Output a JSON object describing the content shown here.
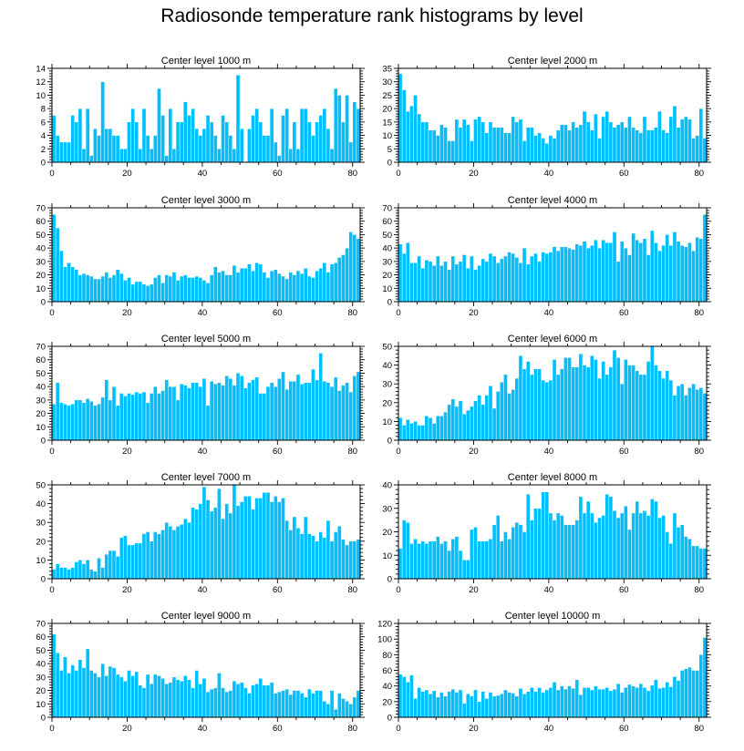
{
  "figure_title": "Radiosonde temperature rank histograms by level",
  "colors": {
    "bar": "#00bfff",
    "axes": "#000000"
  },
  "chart_data": [
    {
      "type": "bar",
      "title": "Center level 1000 m",
      "xlim": [
        0,
        82
      ],
      "ylim": [
        0,
        14
      ],
      "yticks": [
        0,
        2,
        4,
        6,
        8,
        10,
        12,
        14
      ],
      "xticks": [
        0,
        20,
        40,
        60,
        80
      ],
      "values": [
        7,
        4,
        3,
        3,
        3,
        7,
        6,
        8,
        2,
        8,
        1,
        5,
        4,
        12,
        5,
        5,
        4,
        4,
        2,
        2,
        6,
        8,
        6,
        2,
        8,
        4,
        2,
        4,
        11,
        7,
        1,
        8,
        2,
        6,
        6,
        9,
        7,
        8,
        5,
        4,
        5,
        7,
        6,
        4,
        2,
        7,
        6,
        4,
        2,
        13,
        5,
        0,
        5,
        7,
        8,
        6,
        4,
        4,
        8,
        3,
        1,
        7,
        8,
        2,
        6,
        2,
        8,
        8,
        6,
        4,
        6,
        7,
        8,
        5,
        2,
        11,
        10,
        6,
        10,
        3,
        9,
        8
      ]
    },
    {
      "type": "bar",
      "title": "Center level 2000 m",
      "xlim": [
        0,
        82
      ],
      "ylim": [
        0,
        35
      ],
      "yticks": [
        0,
        5,
        10,
        15,
        20,
        25,
        30,
        35
      ],
      "xticks": [
        0,
        20,
        40,
        60,
        80
      ],
      "values": [
        33,
        27,
        19,
        21,
        25,
        18,
        15,
        15,
        12,
        12,
        10,
        14,
        13,
        8,
        8,
        16,
        13,
        16,
        14,
        8,
        16,
        17,
        15,
        11,
        15,
        13,
        13,
        13,
        11,
        11,
        17,
        15,
        16,
        8,
        13,
        13,
        10,
        11,
        9,
        7,
        10,
        9,
        12,
        14,
        14,
        12,
        15,
        13,
        14,
        19,
        15,
        12,
        18,
        9,
        17,
        19,
        15,
        13,
        14,
        15,
        13,
        17,
        13,
        12,
        11,
        17,
        12,
        12,
        13,
        19,
        12,
        11,
        17,
        21,
        13,
        16,
        17,
        16,
        9,
        10,
        20,
        9
      ]
    },
    {
      "type": "bar",
      "title": "Center level 3000 m",
      "xlim": [
        0,
        82
      ],
      "ylim": [
        0,
        70
      ],
      "yticks": [
        0,
        10,
        20,
        30,
        40,
        50,
        60,
        70
      ],
      "xticks": [
        0,
        20,
        40,
        60,
        80
      ],
      "values": [
        65,
        55,
        38,
        26,
        29,
        26,
        24,
        20,
        21,
        20,
        19,
        17,
        17,
        19,
        22,
        18,
        20,
        24,
        21,
        16,
        18,
        13,
        15,
        15,
        13,
        12,
        13,
        18,
        20,
        14,
        20,
        19,
        22,
        16,
        19,
        20,
        18,
        18,
        19,
        18,
        16,
        14,
        20,
        26,
        22,
        23,
        20,
        20,
        27,
        22,
        25,
        25,
        28,
        23,
        29,
        28,
        22,
        18,
        23,
        24,
        21,
        19,
        17,
        22,
        20,
        23,
        21,
        25,
        19,
        18,
        23,
        25,
        29,
        22,
        28,
        29,
        33,
        35,
        40,
        52,
        50,
        47
      ]
    },
    {
      "type": "bar",
      "title": "Center level 4000 m",
      "xlim": [
        0,
        82
      ],
      "ylim": [
        0,
        70
      ],
      "yticks": [
        0,
        10,
        20,
        30,
        40,
        50,
        60,
        70
      ],
      "xticks": [
        0,
        20,
        40,
        60,
        80
      ],
      "values": [
        43,
        36,
        44,
        29,
        29,
        34,
        25,
        31,
        30,
        27,
        34,
        27,
        30,
        24,
        34,
        28,
        30,
        35,
        25,
        34,
        24,
        27,
        32,
        30,
        36,
        34,
        29,
        32,
        34,
        37,
        36,
        33,
        29,
        40,
        28,
        34,
        36,
        30,
        37,
        36,
        37,
        41,
        38,
        41,
        41,
        40,
        39,
        43,
        42,
        45,
        40,
        42,
        46,
        40,
        46,
        44,
        44,
        52,
        30,
        45,
        40,
        35,
        51,
        46,
        44,
        47,
        35,
        53,
        44,
        38,
        42,
        50,
        42,
        52,
        45,
        42,
        41,
        44,
        38,
        48,
        47,
        65
      ]
    },
    {
      "type": "bar",
      "title": "Center level 5000 m",
      "xlim": [
        0,
        82
      ],
      "ylim": [
        0,
        70
      ],
      "yticks": [
        0,
        10,
        20,
        30,
        40,
        50,
        60,
        70
      ],
      "xticks": [
        0,
        20,
        40,
        60,
        80
      ],
      "values": [
        27,
        43,
        28,
        27,
        26,
        27,
        30,
        30,
        28,
        31,
        29,
        26,
        27,
        32,
        45,
        30,
        40,
        26,
        35,
        33,
        35,
        34,
        36,
        35,
        36,
        28,
        35,
        40,
        35,
        37,
        45,
        40,
        40,
        30,
        42,
        41,
        39,
        43,
        43,
        40,
        46,
        26,
        44,
        42,
        43,
        41,
        48,
        46,
        41,
        50,
        48,
        39,
        43,
        45,
        47,
        35,
        35,
        40,
        43,
        40,
        46,
        51,
        38,
        44,
        44,
        49,
        42,
        43,
        43,
        53,
        45,
        65,
        44,
        43,
        40,
        47,
        37,
        41,
        43,
        36,
        48,
        51
      ]
    },
    {
      "type": "bar",
      "title": "Center level 6000 m",
      "xlim": [
        0,
        82
      ],
      "ylim": [
        0,
        50
      ],
      "yticks": [
        0,
        10,
        20,
        30,
        40,
        50
      ],
      "xticks": [
        0,
        20,
        40,
        60,
        80
      ],
      "values": [
        12,
        8,
        11,
        9,
        10,
        8,
        8,
        13,
        12,
        9,
        13,
        13,
        15,
        19,
        22,
        18,
        21,
        14,
        16,
        18,
        21,
        24,
        19,
        24,
        29,
        17,
        26,
        31,
        35,
        25,
        27,
        33,
        45,
        38,
        42,
        35,
        38,
        38,
        32,
        31,
        32,
        43,
        35,
        38,
        44,
        44,
        39,
        39,
        46,
        40,
        39,
        45,
        43,
        33,
        42,
        35,
        39,
        48,
        44,
        30,
        43,
        40,
        40,
        37,
        35,
        35,
        42,
        50,
        40,
        37,
        33,
        37,
        32,
        24,
        29,
        30,
        24,
        28,
        30,
        27,
        28,
        25
      ]
    },
    {
      "type": "bar",
      "title": "Center level 7000 m",
      "xlim": [
        0,
        82
      ],
      "ylim": [
        0,
        50
      ],
      "yticks": [
        0,
        10,
        20,
        30,
        40,
        50
      ],
      "xticks": [
        0,
        20,
        40,
        60,
        80
      ],
      "values": [
        5,
        8,
        6,
        6,
        5,
        6,
        9,
        10,
        8,
        10,
        5,
        4,
        11,
        6,
        13,
        15,
        15,
        12,
        22,
        23,
        18,
        18,
        19,
        19,
        24,
        25,
        20,
        25,
        24,
        26,
        30,
        28,
        26,
        28,
        29,
        32,
        30,
        38,
        37,
        40,
        49,
        42,
        36,
        38,
        48,
        32,
        40,
        35,
        50,
        39,
        41,
        44,
        44,
        37,
        43,
        43,
        46,
        46,
        41,
        44,
        41,
        43,
        31,
        26,
        33,
        27,
        24,
        33,
        24,
        23,
        20,
        25,
        22,
        31,
        20,
        25,
        28,
        21,
        18,
        20,
        20,
        21
      ]
    },
    {
      "type": "bar",
      "title": "Center level 8000 m",
      "xlim": [
        0,
        82
      ],
      "ylim": [
        0,
        40
      ],
      "yticks": [
        0,
        10,
        20,
        30,
        40
      ],
      "xticks": [
        0,
        20,
        40,
        60,
        80
      ],
      "values": [
        13,
        25,
        24,
        15,
        17,
        15,
        16,
        15,
        16,
        16,
        18,
        15,
        16,
        12,
        17,
        18,
        12,
        8,
        8,
        21,
        22,
        16,
        16,
        16,
        17,
        23,
        27,
        16,
        20,
        17,
        22,
        24,
        23,
        20,
        36,
        25,
        30,
        30,
        37,
        37,
        28,
        25,
        28,
        27,
        23,
        23,
        23,
        25,
        35,
        28,
        33,
        28,
        24,
        26,
        27,
        36,
        35,
        29,
        26,
        28,
        31,
        21,
        28,
        33,
        28,
        29,
        27,
        34,
        33,
        26,
        27,
        20,
        15,
        28,
        22,
        23,
        18,
        17,
        14,
        14,
        13,
        13
      ]
    },
    {
      "type": "bar",
      "title": "Center level 9000 m",
      "xlim": [
        0,
        82
      ],
      "ylim": [
        0,
        70
      ],
      "yticks": [
        0,
        10,
        20,
        30,
        40,
        50,
        60,
        70
      ],
      "xticks": [
        0,
        20,
        40,
        60,
        80
      ],
      "values": [
        62,
        48,
        35,
        45,
        33,
        39,
        35,
        43,
        37,
        51,
        35,
        33,
        30,
        40,
        31,
        38,
        37,
        32,
        30,
        27,
        35,
        31,
        34,
        24,
        22,
        32,
        25,
        32,
        31,
        29,
        25,
        26,
        30,
        28,
        27,
        31,
        28,
        22,
        35,
        25,
        29,
        19,
        21,
        22,
        33,
        22,
        19,
        20,
        27,
        25,
        26,
        22,
        18,
        24,
        25,
        29,
        24,
        24,
        26,
        18,
        19,
        20,
        21,
        17,
        20,
        20,
        18,
        15,
        21,
        18,
        20,
        20,
        12,
        10,
        20,
        6,
        18,
        14,
        12,
        10,
        15,
        20
      ]
    },
    {
      "type": "bar",
      "title": "Center level 10000 m",
      "xlim": [
        0,
        82
      ],
      "ylim": [
        0,
        120
      ],
      "yticks": [
        0,
        20,
        40,
        60,
        80,
        100,
        120
      ],
      "xticks": [
        0,
        20,
        40,
        60,
        80
      ],
      "values": [
        55,
        52,
        45,
        54,
        24,
        38,
        33,
        35,
        30,
        34,
        26,
        32,
        27,
        33,
        36,
        32,
        35,
        18,
        30,
        27,
        35,
        20,
        33,
        24,
        32,
        27,
        28,
        30,
        35,
        32,
        31,
        27,
        37,
        30,
        33,
        38,
        33,
        38,
        32,
        35,
        38,
        45,
        35,
        40,
        36,
        40,
        37,
        48,
        29,
        38,
        38,
        35,
        40,
        36,
        36,
        38,
        34,
        36,
        43,
        32,
        38,
        42,
        40,
        38,
        43,
        38,
        34,
        41,
        48,
        37,
        38,
        45,
        39,
        52,
        47,
        60,
        62,
        64,
        60,
        60,
        80,
        102
      ]
    }
  ]
}
